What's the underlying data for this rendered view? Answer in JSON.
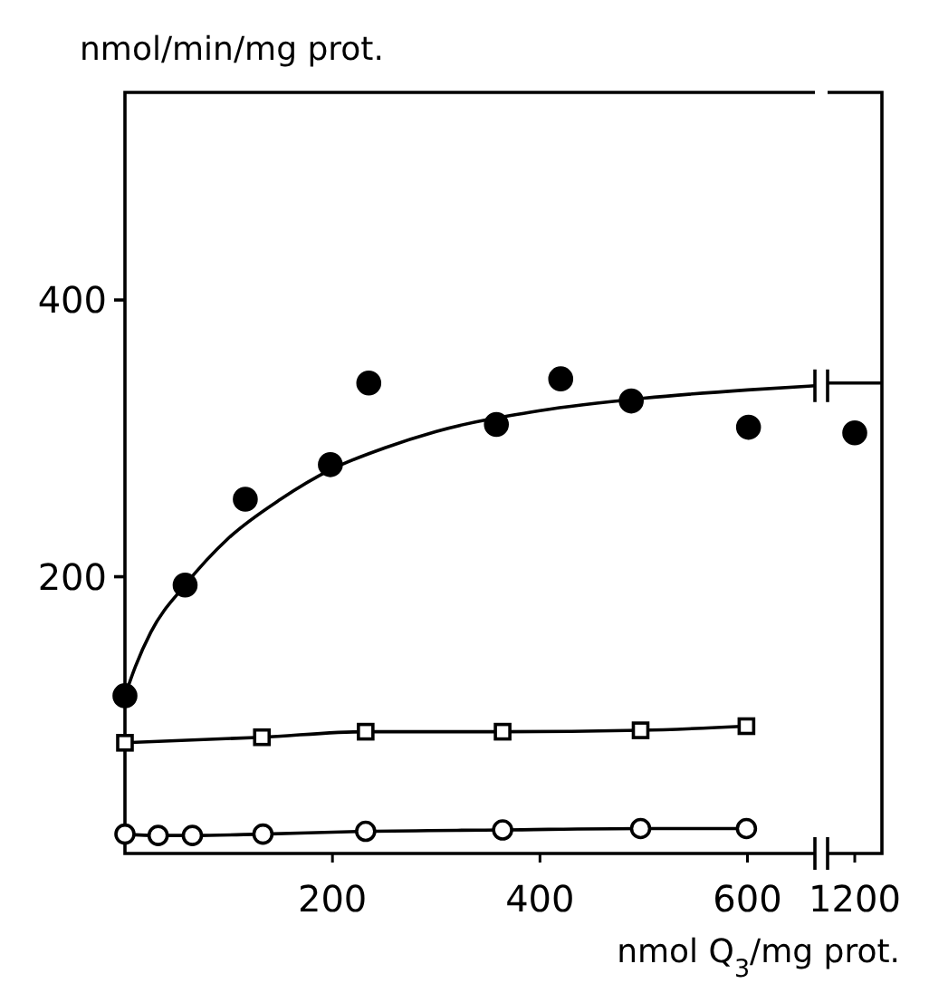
{
  "chart_data": [
    {
      "type": "scatter",
      "ylabel": "nmol/min/mg prot.",
      "xlim": [
        0,
        665
      ],
      "ylim": [
        0,
        550
      ],
      "xticks": [
        200,
        400,
        600
      ],
      "yticks": [
        200,
        400
      ],
      "series": [
        {
          "marker": "circle",
          "color": "#000000",
          "x": [
            0,
            58,
            116,
            198,
            235,
            358,
            420,
            488,
            601
          ],
          "values": [
            114,
            194,
            256,
            281,
            340,
            310,
            343,
            327,
            308
          ]
        },
        {
          "type": "line",
          "marker": "none",
          "color": "#000000",
          "x": [
            0,
            10,
            25,
            58,
            100,
            150,
            200,
            250,
            300,
            400,
            500,
            600,
            665
          ],
          "values": [
            114,
            135,
            160,
            194,
            228,
            256,
            278,
            293,
            305,
            320,
            329,
            335,
            338
          ]
        },
        {
          "type": "line",
          "marker": "square",
          "color": "#000000",
          "x": [
            0,
            132,
            232,
            364,
            497,
            599
          ],
          "values": [
            80,
            84,
            88,
            88,
            89,
            92
          ]
        },
        {
          "type": "line",
          "marker": "circle",
          "color": "#000000",
          "x": [
            0,
            32,
            65,
            133,
            232,
            364,
            497,
            599
          ],
          "values": [
            14,
            13,
            13,
            14,
            16,
            17,
            18,
            18
          ]
        }
      ]
    },
    {
      "type": "scatter",
      "xlabel": "nmol Q$_{3}$/mg prot.",
      "categories": [
        "1200"
      ],
      "ylim": [
        0,
        550
      ],
      "tick_labels": "x",
      "series": [
        {
          "marker": "circle",
          "color": "#000000",
          "values": [
            304
          ]
        }
      ],
      "ref_lines": [
        {
          "axis": "y",
          "value": 340,
          "color": "#000000"
        }
      ]
    }
  ]
}
